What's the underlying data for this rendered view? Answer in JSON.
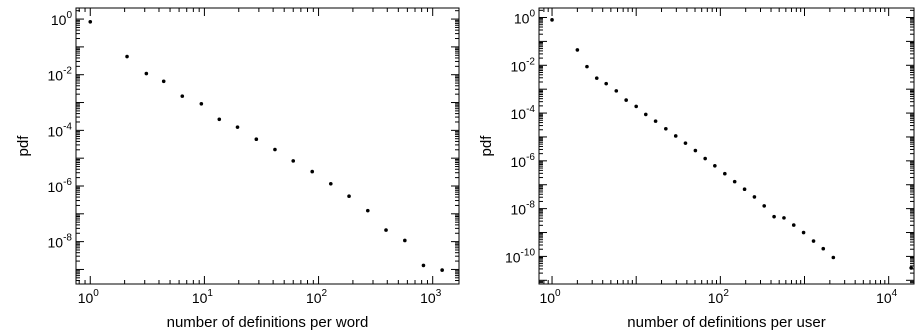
{
  "chart_data": [
    {
      "type": "scatter",
      "xscale": "log",
      "yscale": "log",
      "xlabel": "number of definitions per word",
      "ylabel": "pdf",
      "xlim": [
        0.75,
        1700
      ],
      "ylim": [
        3e-10,
        2.5
      ],
      "grid": false,
      "xticks": [
        {
          "base": "10",
          "exp": "0",
          "value": 1
        },
        {
          "base": "10",
          "exp": "1",
          "value": 10
        },
        {
          "base": "10",
          "exp": "2",
          "value": 100
        },
        {
          "base": "10",
          "exp": "3",
          "value": 1000
        }
      ],
      "yticks": [
        {
          "base": "10",
          "exp": "0",
          "value": 1
        },
        {
          "base": "10",
          "exp": "-2",
          "value": 0.01
        },
        {
          "base": "10",
          "exp": "-4",
          "value": 0.0001
        },
        {
          "base": "10",
          "exp": "-6",
          "value": 1e-06
        },
        {
          "base": "10",
          "exp": "-8",
          "value": 1e-08
        }
      ],
      "x": [
        1,
        2.1,
        3.1,
        4.4,
        6.4,
        9.4,
        13.5,
        19.5,
        28.5,
        41.5,
        60,
        88,
        128,
        185,
        270,
        390,
        570,
        830,
        1210
      ],
      "y": [
        0.8,
        0.045,
        0.011,
        0.0058,
        0.0017,
        0.0009,
        0.00025,
        0.00013,
        4.8e-05,
        2.05e-05,
        8e-06,
        3.3e-06,
        1.2e-06,
        4.3e-07,
        1.3e-07,
        2.6e-08,
        1.1e-08,
        1.4e-09,
        9.5e-10
      ]
    },
    {
      "type": "scatter",
      "xscale": "log",
      "yscale": "log",
      "xlabel": "number of definitions per user",
      "ylabel": "pdf",
      "xlim": [
        0.7,
        20000
      ],
      "ylim": [
        7e-12,
        2.5
      ],
      "grid": false,
      "xticks": [
        {
          "base": "10",
          "exp": "0",
          "value": 1
        },
        {
          "base": "10",
          "exp": "2",
          "value": 100
        },
        {
          "base": "10",
          "exp": "4",
          "value": 10000
        }
      ],
      "yticks": [
        {
          "base": "10",
          "exp": "0",
          "value": 1
        },
        {
          "base": "10",
          "exp": "-2",
          "value": 0.01
        },
        {
          "base": "10",
          "exp": "-4",
          "value": 0.0001
        },
        {
          "base": "10",
          "exp": "-6",
          "value": 1e-06
        },
        {
          "base": "10",
          "exp": "-8",
          "value": 1e-08
        },
        {
          "base": "10",
          "exp": "-10",
          "value": 1e-10
        }
      ],
      "x": [
        1,
        2,
        2.6,
        3.4,
        4.4,
        5.8,
        7.6,
        10,
        13,
        17,
        22.5,
        29.5,
        38.5,
        50.5,
        66,
        86,
        113,
        148,
        194,
        254,
        332,
        435,
        570,
        745,
        975,
        1280,
        1670,
        2200,
        18500
      ],
      "y": [
        0.8,
        0.044,
        0.0088,
        0.0029,
        0.0017,
        0.00085,
        0.00035,
        0.00019,
        8.8e-05,
        4.6e-05,
        2.2e-05,
        1.1e-05,
        5.5e-06,
        2.7e-06,
        1.25e-06,
        6.2e-07,
        2.9e-07,
        1.35e-07,
        6.5e-08,
        3.1e-08,
        1.3e-08,
        4.6e-09,
        4.1e-09,
        2.05e-09,
        1e-09,
        4.4e-10,
        2.1e-10,
        9e-11,
        3.3e-11
      ]
    }
  ]
}
